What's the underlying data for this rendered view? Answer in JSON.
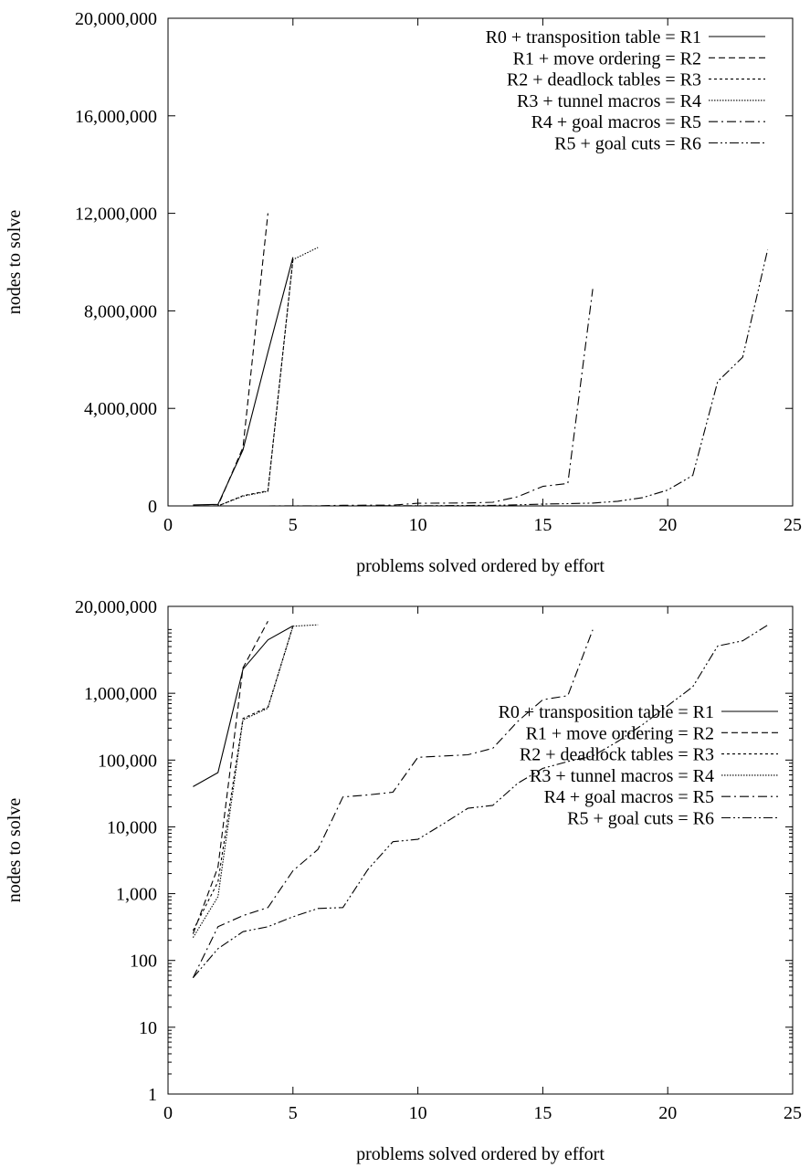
{
  "chart_data": [
    {
      "type": "line",
      "xlabel": "problems solved ordered by effort",
      "ylabel": "nodes to solve",
      "xlim": [
        0,
        25
      ],
      "ylim": [
        0,
        20000000
      ],
      "yscale": "linear",
      "xticks": [
        "0",
        "5",
        "10",
        "15",
        "20",
        "25"
      ],
      "yticks": [
        "0",
        "4,000,000",
        "8,000,000",
        "12,000,000",
        "16,000,000",
        "20,000,000"
      ],
      "legend_position": "top-right",
      "series": [
        {
          "name": "R0 + transposition table = R1",
          "dash": "solid",
          "x": [
            1,
            2,
            3,
            4,
            5
          ],
          "y": [
            40000,
            65000,
            2300000,
            6300000,
            10200000
          ]
        },
        {
          "name": "R1 + move ordering = R2",
          "dash": "dashed",
          "x": [
            1,
            2,
            3,
            4
          ],
          "y": [
            250,
            2500,
            2400000,
            12000000
          ]
        },
        {
          "name": "R2 + deadlock tables = R3",
          "dash": "dotted",
          "x": [
            1,
            2,
            3,
            4,
            5
          ],
          "y": [
            280,
            1500,
            420000,
            620000,
            10100000
          ]
        },
        {
          "name": "R3 + tunnel macros = R4",
          "dash": "finedotted",
          "x": [
            1,
            2,
            3,
            4,
            5,
            6
          ],
          "y": [
            220,
            900,
            400000,
            600000,
            10100000,
            10600000
          ]
        },
        {
          "name": "R4 + goal macros = R5",
          "dash": "dashdot",
          "x": [
            1,
            2,
            3,
            4,
            5,
            6,
            7,
            8,
            9,
            10,
            11,
            12,
            13,
            14,
            15,
            16,
            17
          ],
          "y": [
            55,
            320,
            470,
            620,
            2200,
            4600,
            28000,
            30000,
            33000,
            110000,
            115000,
            120000,
            150000,
            380000,
            800000,
            920000,
            8900000
          ]
        },
        {
          "name": "R5 + goal cuts = R6",
          "dash": "dashdotdot",
          "x": [
            1,
            2,
            3,
            4,
            5,
            6,
            7,
            8,
            9,
            10,
            11,
            12,
            13,
            14,
            15,
            16,
            17,
            18,
            19,
            20,
            21,
            22,
            23,
            24
          ],
          "y": [
            55,
            150,
            270,
            320,
            450,
            600,
            620,
            2300,
            6000,
            6500,
            11000,
            19000,
            21000,
            45000,
            75000,
            95000,
            115000,
            190000,
            340000,
            650000,
            1250000,
            5100000,
            6100000,
            10500000
          ]
        }
      ]
    },
    {
      "type": "line",
      "xlabel": "problems solved ordered by effort",
      "ylabel": "nodes to solve",
      "xlim": [
        0,
        25
      ],
      "ylim": [
        1,
        20000000
      ],
      "yscale": "log",
      "xticks": [
        "0",
        "5",
        "10",
        "15",
        "20",
        "25"
      ],
      "yticks": [
        "1",
        "10",
        "100",
        "1,000",
        "10,000",
        "100,000",
        "1,000,000",
        "20,000,000"
      ],
      "legend_position": "bottom-right",
      "series": [
        {
          "name": "R0 + transposition table = R1",
          "dash": "solid",
          "x": [
            1,
            2,
            3,
            4,
            5
          ],
          "y": [
            40000,
            65000,
            2300000,
            6300000,
            10200000
          ]
        },
        {
          "name": "R1 + move ordering = R2",
          "dash": "dashed",
          "x": [
            1,
            2,
            3,
            4
          ],
          "y": [
            250,
            2500,
            2400000,
            12000000
          ]
        },
        {
          "name": "R2 + deadlock tables = R3",
          "dash": "dotted",
          "x": [
            1,
            2,
            3,
            4,
            5
          ],
          "y": [
            280,
            1500,
            420000,
            620000,
            10100000
          ]
        },
        {
          "name": "R3 + tunnel macros = R4",
          "dash": "finedotted",
          "x": [
            1,
            2,
            3,
            4,
            5,
            6
          ],
          "y": [
            220,
            900,
            400000,
            600000,
            10100000,
            10600000
          ]
        },
        {
          "name": "R4 + goal macros = R5",
          "dash": "dashdot",
          "x": [
            1,
            2,
            3,
            4,
            5,
            6,
            7,
            8,
            9,
            10,
            11,
            12,
            13,
            14,
            15,
            16,
            17
          ],
          "y": [
            55,
            320,
            470,
            620,
            2200,
            4600,
            28000,
            30000,
            33000,
            110000,
            115000,
            120000,
            150000,
            380000,
            800000,
            920000,
            8900000
          ]
        },
        {
          "name": "R5 + goal cuts = R6",
          "dash": "dashdotdot",
          "x": [
            1,
            2,
            3,
            4,
            5,
            6,
            7,
            8,
            9,
            10,
            11,
            12,
            13,
            14,
            15,
            16,
            17,
            18,
            19,
            20,
            21,
            22,
            23,
            24
          ],
          "y": [
            55,
            150,
            270,
            320,
            450,
            600,
            620,
            2300,
            6000,
            6500,
            11000,
            19000,
            21000,
            45000,
            75000,
            95000,
            115000,
            190000,
            340000,
            650000,
            1250000,
            5100000,
            6100000,
            10500000
          ]
        }
      ]
    }
  ]
}
